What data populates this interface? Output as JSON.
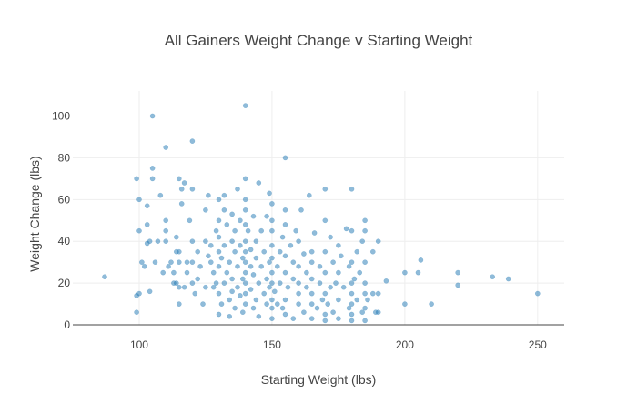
{
  "chart_data": {
    "type": "scatter",
    "title": "All Gainers Weight Change v Starting Weight",
    "xlabel": "Starting Weight (lbs)",
    "ylabel": "Weight Change (lbs)",
    "xlim": [
      75,
      260
    ],
    "ylim": [
      0,
      112
    ],
    "x_ticks": [
      100,
      150,
      200,
      250
    ],
    "y_ticks": [
      0,
      20,
      40,
      60,
      80,
      100
    ],
    "grid": true,
    "legend": "none",
    "marker_color": "#1f77b4",
    "marker_opacity": 0.5,
    "series": [
      {
        "points": [
          [
            87,
            23
          ],
          [
            99,
            6
          ],
          [
            99,
            14
          ],
          [
            100,
            15
          ],
          [
            100,
            45
          ],
          [
            99,
            70
          ],
          [
            100,
            60
          ],
          [
            101,
            30
          ],
          [
            102,
            28
          ],
          [
            103,
            39
          ],
          [
            103,
            48
          ],
          [
            103,
            57
          ],
          [
            104,
            16
          ],
          [
            104,
            40
          ],
          [
            105,
            100
          ],
          [
            105,
            75
          ],
          [
            105,
            70
          ],
          [
            106,
            30
          ],
          [
            107,
            40
          ],
          [
            108,
            62
          ],
          [
            109,
            25
          ],
          [
            110,
            85
          ],
          [
            110,
            45
          ],
          [
            110,
            50
          ],
          [
            110,
            40
          ],
          [
            111,
            28
          ],
          [
            112,
            30
          ],
          [
            113,
            20
          ],
          [
            113,
            25
          ],
          [
            114,
            35
          ],
          [
            114,
            20
          ],
          [
            114,
            42
          ],
          [
            115,
            10
          ],
          [
            115,
            18
          ],
          [
            115,
            35
          ],
          [
            115,
            70
          ],
          [
            115,
            30
          ],
          [
            116,
            65
          ],
          [
            116,
            58
          ],
          [
            117,
            68
          ],
          [
            117,
            18
          ],
          [
            118,
            30
          ],
          [
            118,
            25
          ],
          [
            119,
            50
          ],
          [
            120,
            88
          ],
          [
            120,
            65
          ],
          [
            120,
            40
          ],
          [
            120,
            30
          ],
          [
            120,
            20
          ],
          [
            121,
            15
          ],
          [
            122,
            22
          ],
          [
            122,
            35
          ],
          [
            123,
            28
          ],
          [
            124,
            10
          ],
          [
            125,
            18
          ],
          [
            125,
            55
          ],
          [
            125,
            40
          ],
          [
            126,
            62
          ],
          [
            126,
            33
          ],
          [
            127,
            38
          ],
          [
            127,
            30
          ],
          [
            128,
            18
          ],
          [
            128,
            25
          ],
          [
            129,
            20
          ],
          [
            129,
            45
          ],
          [
            130,
            5
          ],
          [
            130,
            15
          ],
          [
            130,
            28
          ],
          [
            130,
            35
          ],
          [
            130,
            42
          ],
          [
            130,
            50
          ],
          [
            130,
            60
          ],
          [
            131,
            10
          ],
          [
            131,
            32
          ],
          [
            132,
            20
          ],
          [
            132,
            38
          ],
          [
            132,
            55
          ],
          [
            132,
            62
          ],
          [
            133,
            25
          ],
          [
            133,
            48
          ],
          [
            134,
            4
          ],
          [
            134,
            12
          ],
          [
            134,
            30
          ],
          [
            135,
            16
          ],
          [
            135,
            22
          ],
          [
            135,
            40
          ],
          [
            135,
            53
          ],
          [
            136,
            8
          ],
          [
            136,
            35
          ],
          [
            136,
            45
          ],
          [
            137,
            18
          ],
          [
            137,
            28
          ],
          [
            137,
            65
          ],
          [
            138,
            14
          ],
          [
            138,
            38
          ],
          [
            138,
            50
          ],
          [
            139,
            6
          ],
          [
            139,
            22
          ],
          [
            139,
            32
          ],
          [
            140,
            105
          ],
          [
            140,
            70
          ],
          [
            140,
            60
          ],
          [
            140,
            55
          ],
          [
            140,
            48
          ],
          [
            140,
            40
          ],
          [
            140,
            35
          ],
          [
            140,
            30
          ],
          [
            140,
            25
          ],
          [
            140,
            20
          ],
          [
            140,
            15
          ],
          [
            140,
            10
          ],
          [
            141,
            45
          ],
          [
            142,
            17
          ],
          [
            142,
            28
          ],
          [
            142,
            36
          ],
          [
            143,
            8
          ],
          [
            143,
            24
          ],
          [
            143,
            52
          ],
          [
            144,
            12
          ],
          [
            144,
            32
          ],
          [
            144,
            40
          ],
          [
            145,
            68
          ],
          [
            145,
            4
          ],
          [
            145,
            20
          ],
          [
            146,
            28
          ],
          [
            146,
            45
          ],
          [
            147,
            15
          ],
          [
            147,
            35
          ],
          [
            148,
            10
          ],
          [
            148,
            22
          ],
          [
            148,
            52
          ],
          [
            149,
            63
          ],
          [
            149,
            18
          ],
          [
            149,
            30
          ],
          [
            150,
            3
          ],
          [
            150,
            8
          ],
          [
            150,
            12
          ],
          [
            150,
            20
          ],
          [
            150,
            25
          ],
          [
            150,
            32
          ],
          [
            150,
            38
          ],
          [
            150,
            45
          ],
          [
            150,
            50
          ],
          [
            150,
            58
          ],
          [
            151,
            16
          ],
          [
            152,
            28
          ],
          [
            152,
            10
          ],
          [
            153,
            20
          ],
          [
            153,
            35
          ],
          [
            154,
            8
          ],
          [
            154,
            42
          ],
          [
            155,
            80
          ],
          [
            155,
            5
          ],
          [
            155,
            12
          ],
          [
            155,
            25
          ],
          [
            155,
            33
          ],
          [
            155,
            48
          ],
          [
            155,
            55
          ],
          [
            156,
            18
          ],
          [
            157,
            38
          ],
          [
            158,
            3
          ],
          [
            158,
            22
          ],
          [
            158,
            30
          ],
          [
            159,
            45
          ],
          [
            160,
            10
          ],
          [
            160,
            15
          ],
          [
            160,
            20
          ],
          [
            160,
            28
          ],
          [
            160,
            40
          ],
          [
            161,
            55
          ],
          [
            162,
            6
          ],
          [
            162,
            34
          ],
          [
            163,
            18
          ],
          [
            163,
            25
          ],
          [
            164,
            62
          ],
          [
            165,
            3
          ],
          [
            165,
            10
          ],
          [
            165,
            15
          ],
          [
            165,
            22
          ],
          [
            165,
            30
          ],
          [
            165,
            35
          ],
          [
            166,
            44
          ],
          [
            167,
            8
          ],
          [
            168,
            20
          ],
          [
            168,
            28
          ],
          [
            169,
            12
          ],
          [
            170,
            2
          ],
          [
            170,
            5
          ],
          [
            170,
            15
          ],
          [
            170,
            25
          ],
          [
            170,
            35
          ],
          [
            170,
            50
          ],
          [
            170,
            65
          ],
          [
            171,
            10
          ],
          [
            172,
            18
          ],
          [
            172,
            42
          ],
          [
            173,
            6
          ],
          [
            173,
            30
          ],
          [
            174,
            20
          ],
          [
            175,
            3
          ],
          [
            175,
            12
          ],
          [
            175,
            25
          ],
          [
            175,
            38
          ],
          [
            176,
            33
          ],
          [
            177,
            18
          ],
          [
            178,
            46
          ],
          [
            179,
            8
          ],
          [
            179,
            28
          ],
          [
            180,
            2
          ],
          [
            180,
            5
          ],
          [
            180,
            10
          ],
          [
            180,
            15
          ],
          [
            180,
            20
          ],
          [
            180,
            30
          ],
          [
            180,
            45
          ],
          [
            180,
            65
          ],
          [
            181,
            22
          ],
          [
            182,
            12
          ],
          [
            182,
            35
          ],
          [
            183,
            25
          ],
          [
            184,
            6
          ],
          [
            184,
            40
          ],
          [
            185,
            2
          ],
          [
            185,
            8
          ],
          [
            185,
            15
          ],
          [
            185,
            20
          ],
          [
            185,
            30
          ],
          [
            185,
            45
          ],
          [
            185,
            50
          ],
          [
            186,
            12
          ],
          [
            188,
            15
          ],
          [
            188,
            35
          ],
          [
            189,
            6
          ],
          [
            190,
            40
          ],
          [
            190,
            15
          ],
          [
            190,
            6
          ],
          [
            193,
            21
          ],
          [
            200,
            25
          ],
          [
            200,
            10
          ],
          [
            205,
            25
          ],
          [
            206,
            31
          ],
          [
            210,
            10
          ],
          [
            220,
            25
          ],
          [
            220,
            19
          ],
          [
            233,
            23
          ],
          [
            239,
            22
          ],
          [
            250,
            15
          ]
        ]
      }
    ]
  }
}
